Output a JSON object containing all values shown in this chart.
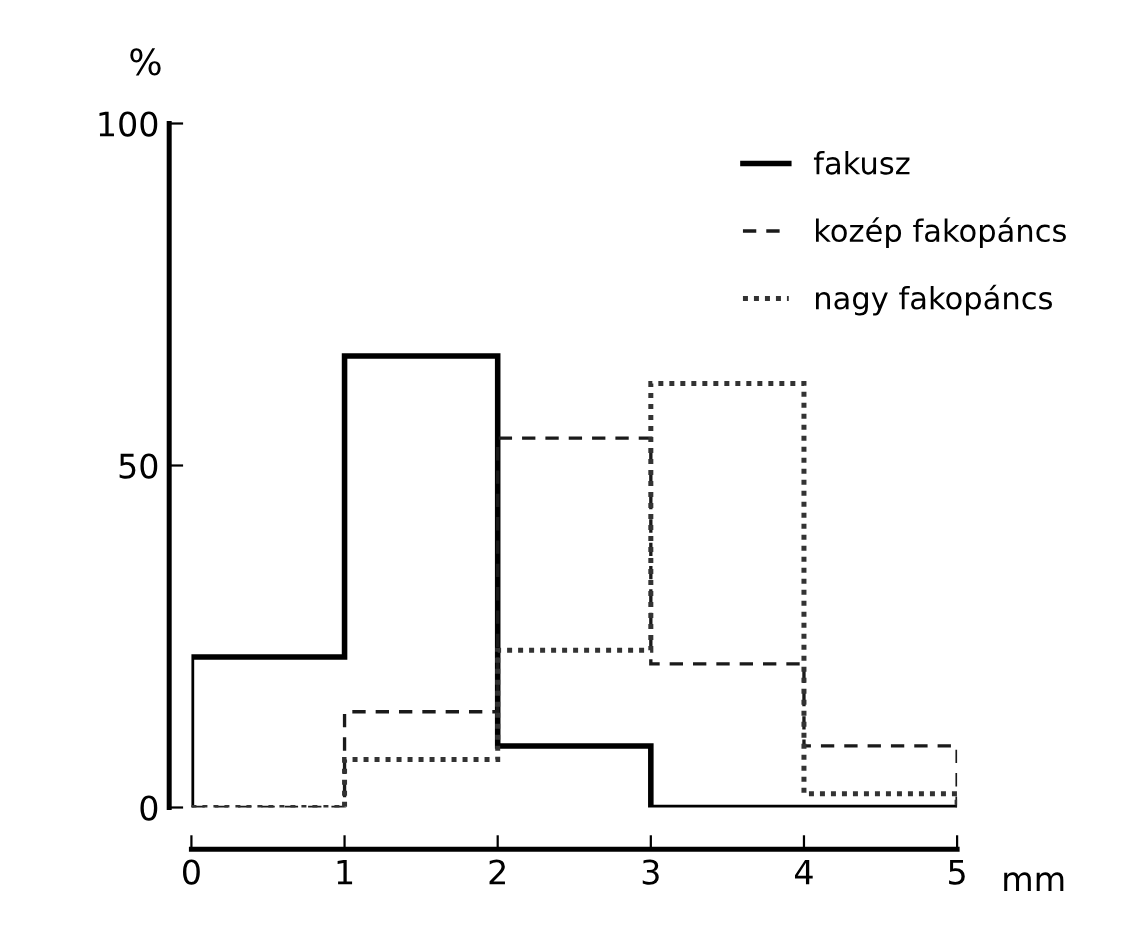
{
  "chart_data": {
    "type": "histogram",
    "xlabel": "mm",
    "ylabel": "%",
    "bins": [
      0,
      1,
      2,
      3,
      4,
      5
    ],
    "series": [
      {
        "name": "fakusz",
        "color": "#000000",
        "line_style": "solid",
        "values": [
          22,
          66,
          9,
          0,
          0
        ]
      },
      {
        "name": "kozép fakopáncs",
        "color": "#1a1a1a",
        "line_style": "dashed",
        "values": [
          0,
          14,
          54,
          21,
          9
        ]
      },
      {
        "name": "nagy fakopáncs",
        "color": "#333333",
        "line_style": "dotted",
        "values": [
          0,
          7,
          23,
          62,
          2
        ]
      }
    ],
    "xlim": [
      0,
      5
    ],
    "xticks": [
      0,
      1,
      2,
      3,
      4,
      5
    ],
    "ylim": [
      0,
      100
    ],
    "yticks": [
      0,
      50,
      100
    ],
    "grid": false,
    "legend": "top right"
  }
}
